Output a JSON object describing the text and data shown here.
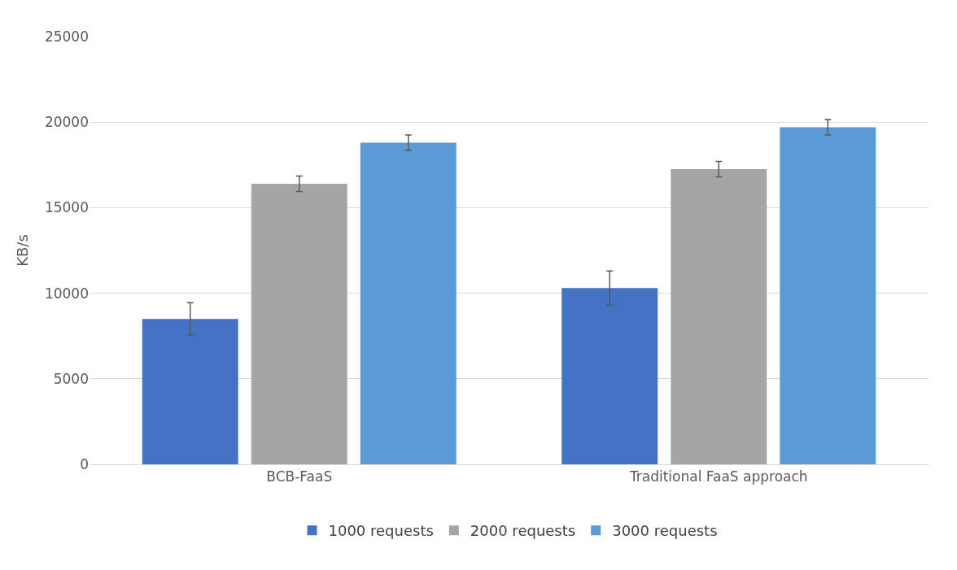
{
  "chart_data": {
    "type": "bar",
    "ylabel": "KB/s",
    "categories": [
      "BCB-FaaS",
      "Traditional FaaS approach"
    ],
    "series": [
      {
        "name": "1000 requests",
        "color": "#4472c4",
        "values": [
          8500,
          10300
        ],
        "errors": [
          950,
          1000
        ]
      },
      {
        "name": "2000 requests",
        "color": "#a5a5a5",
        "values": [
          16400,
          17250
        ],
        "errors": [
          450,
          450
        ]
      },
      {
        "name": "3000 requests",
        "color": "#5b9bd5",
        "values": [
          18800,
          19700
        ],
        "errors": [
          450,
          450
        ]
      }
    ],
    "ylim": [
      0,
      25000
    ],
    "yticks": [
      0,
      5000,
      10000,
      15000,
      20000,
      25000
    ],
    "grid": "y",
    "legend": "bottom"
  }
}
